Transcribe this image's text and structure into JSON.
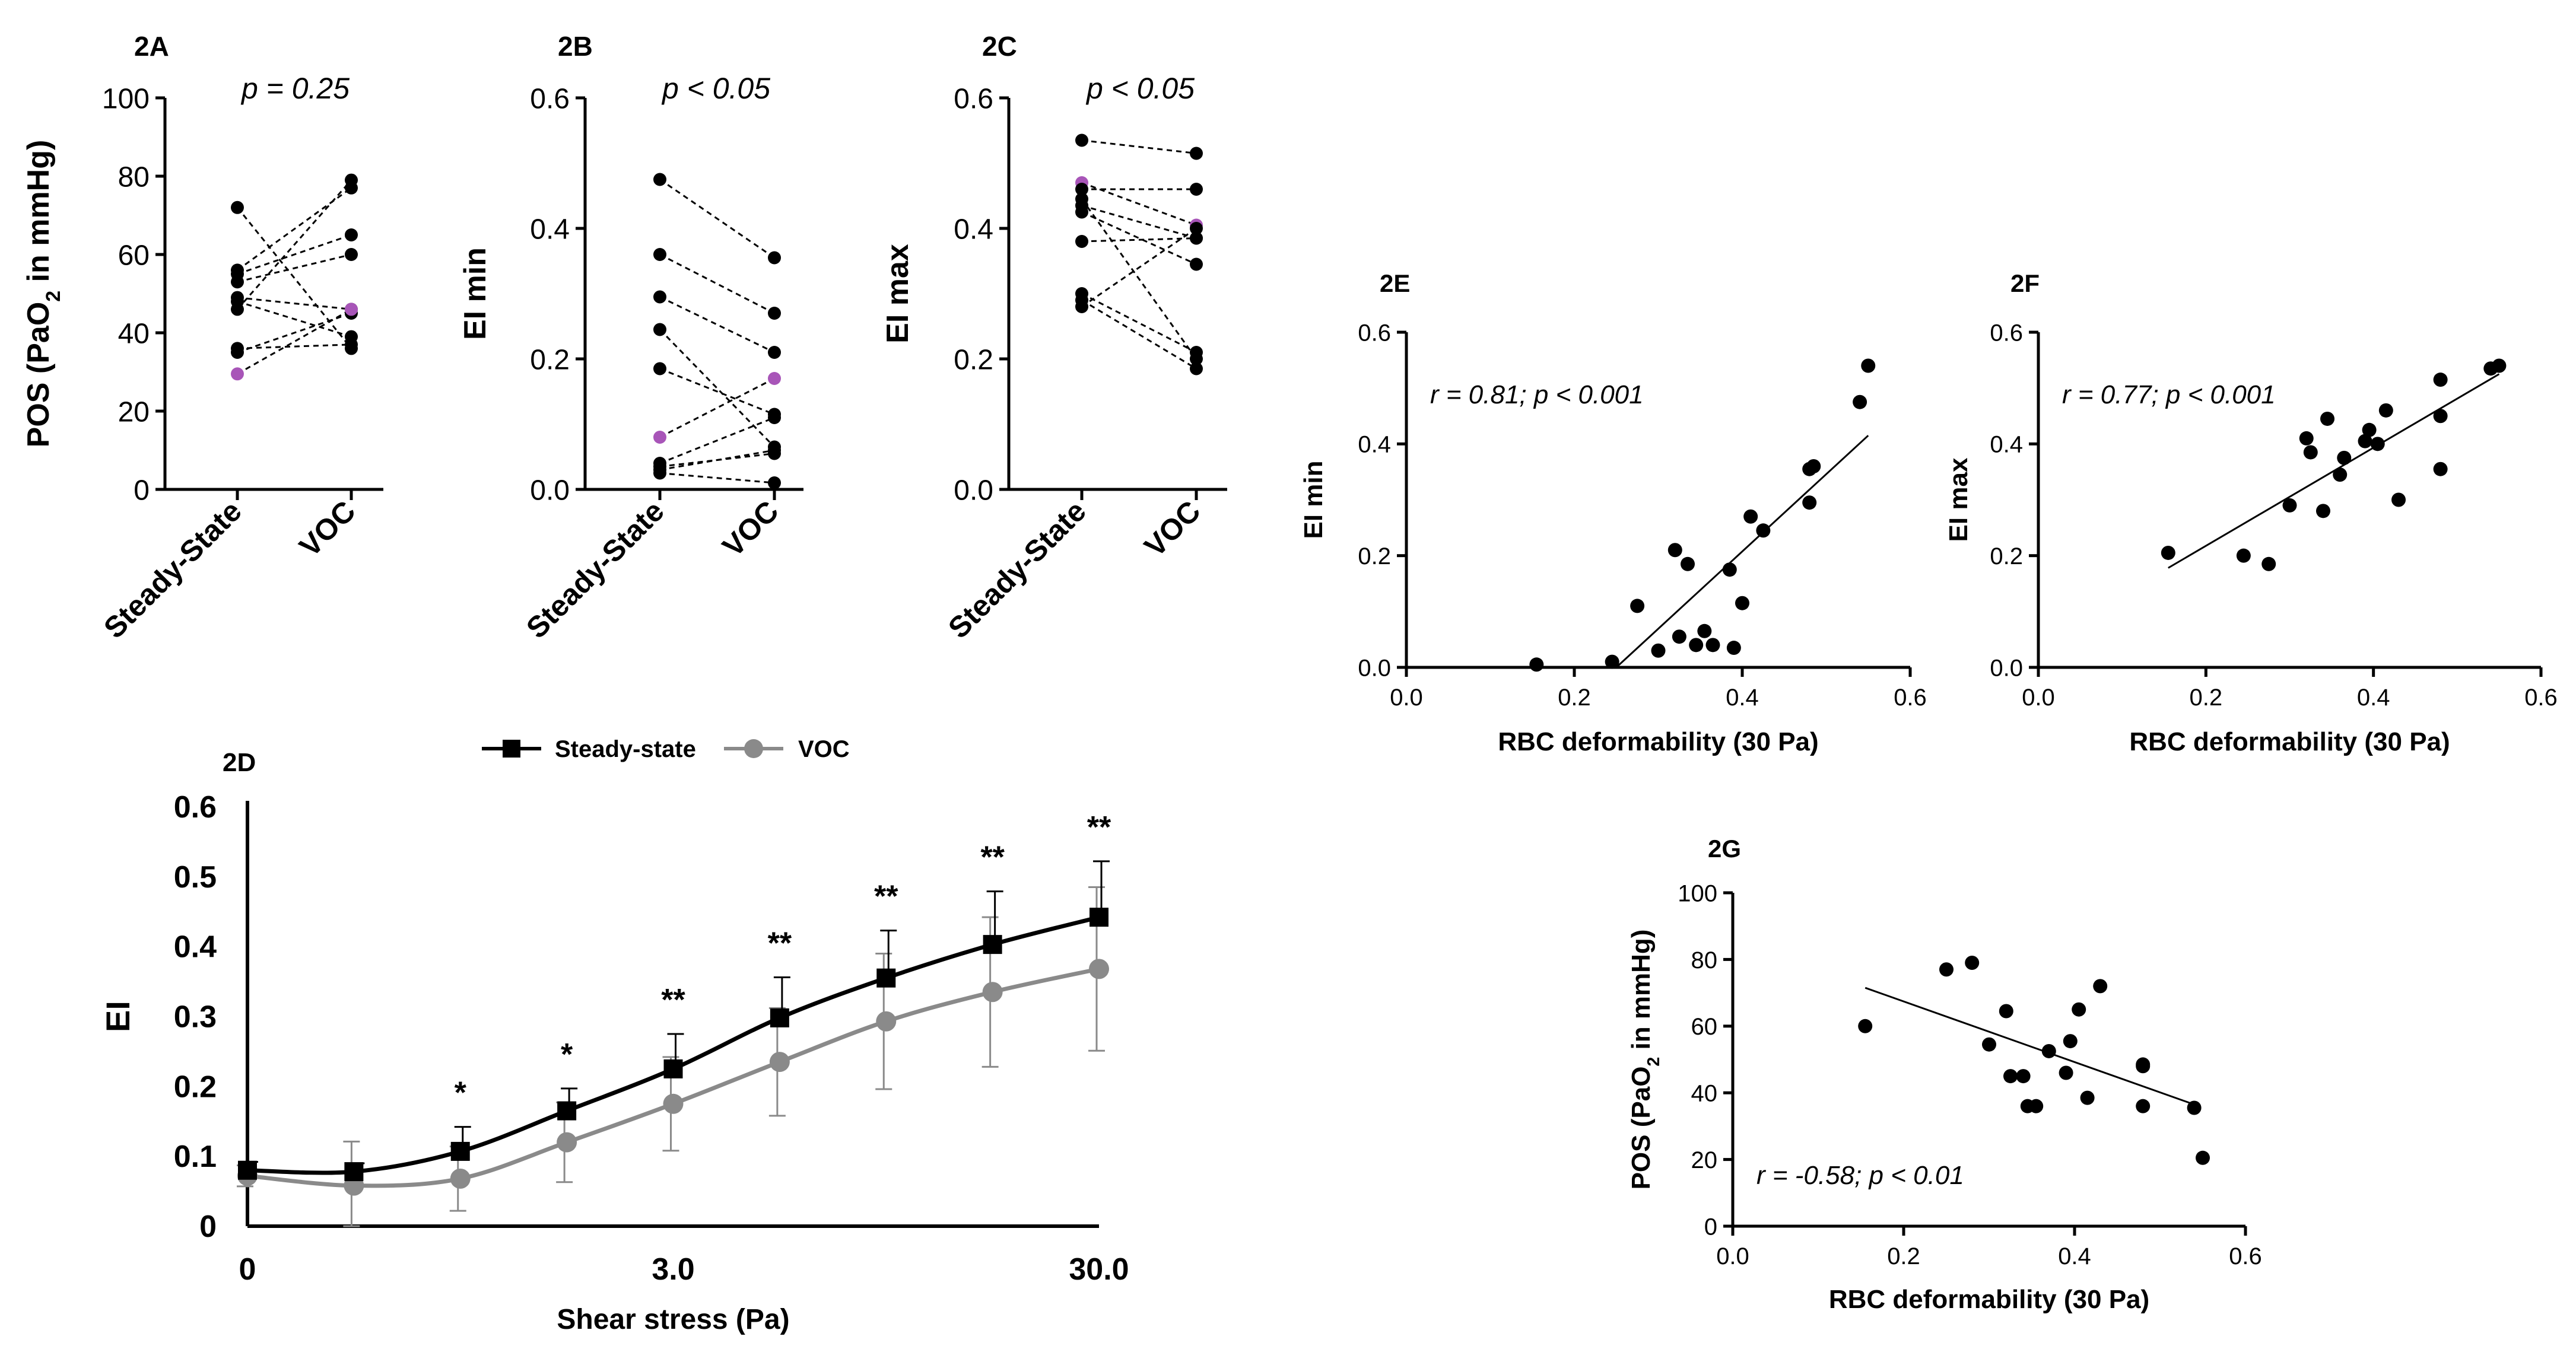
{
  "chart_data": [
    {
      "id": "2A",
      "type": "scatter",
      "style": "paired",
      "panel_label": "2A",
      "annotation": "p = 0.25",
      "ylabel_parts": [
        "POS (PaO",
        "2",
        " in mmHg)"
      ],
      "categories": [
        "Steady-State",
        "VOC"
      ],
      "ylim": [
        0,
        100
      ],
      "yticks": [
        0,
        20,
        40,
        60,
        80,
        100
      ],
      "ytick_labels": [
        "0",
        "20",
        "40",
        "60",
        "80",
        "100"
      ],
      "pairs": [
        [
          72,
          36
        ],
        [
          56,
          77
        ],
        [
          55,
          65
        ],
        [
          53,
          60
        ],
        [
          49,
          46
        ],
        [
          48,
          39
        ],
        [
          46,
          79
        ],
        [
          36,
          37
        ],
        [
          35,
          45
        ],
        [
          29.5,
          46
        ]
      ],
      "highlight_index": 9,
      "point_color": "#000000",
      "highlight_color": "#a855b8"
    },
    {
      "id": "2B",
      "type": "scatter",
      "style": "paired",
      "panel_label": "2B",
      "annotation": "p < 0.05",
      "ylabel": "EI min",
      "categories": [
        "Steady-State",
        "VOC"
      ],
      "ylim": [
        0,
        0.6
      ],
      "yticks": [
        0,
        0.2,
        0.4,
        0.6
      ],
      "ytick_labels": [
        "0.0",
        "0.2",
        "0.4",
        "0.6"
      ],
      "pairs": [
        [
          0.475,
          0.355
        ],
        [
          0.36,
          0.27
        ],
        [
          0.295,
          0.21
        ],
        [
          0.245,
          0.065
        ],
        [
          0.185,
          0.115
        ],
        [
          0.08,
          0.17
        ],
        [
          0.04,
          0.11
        ],
        [
          0.035,
          0.055
        ],
        [
          0.03,
          0.06
        ],
        [
          0.025,
          0.01
        ]
      ],
      "highlight_index": 5,
      "point_color": "#000000",
      "highlight_color": "#a855b8"
    },
    {
      "id": "2C",
      "type": "scatter",
      "style": "paired",
      "panel_label": "2C",
      "annotation": "p < 0.05",
      "ylabel": "EI max",
      "categories": [
        "Steady-State",
        "VOC"
      ],
      "ylim": [
        0,
        0.6
      ],
      "yticks": [
        0,
        0.2,
        0.4,
        0.6
      ],
      "ytick_labels": [
        "0.0",
        "0.2",
        "0.4",
        "0.6"
      ],
      "pairs": [
        [
          0.535,
          0.515
        ],
        [
          0.47,
          0.405
        ],
        [
          0.46,
          0.46
        ],
        [
          0.445,
          0.2
        ],
        [
          0.435,
          0.385
        ],
        [
          0.425,
          0.345
        ],
        [
          0.38,
          0.385
        ],
        [
          0.3,
          0.21
        ],
        [
          0.29,
          0.185
        ],
        [
          0.28,
          0.4
        ]
      ],
      "highlight_index": 1,
      "point_color": "#000000",
      "highlight_color": "#a855b8"
    },
    {
      "id": "2D",
      "type": "line",
      "panel_label": "2D",
      "xlabel": "Shear stress (Pa)",
      "ylabel": "EI",
      "x_tick_labels": [
        {
          "label": "0",
          "index": 0
        },
        {
          "label": "3.0",
          "index": 4
        },
        {
          "label": "30.0",
          "index": 8
        }
      ],
      "x_count": 9,
      "ylim": [
        0,
        0.6
      ],
      "yticks": [
        0,
        0.1,
        0.2,
        0.3,
        0.4,
        0.5,
        0.6
      ],
      "ytick_labels": [
        "0",
        "0.1",
        "0.2",
        "0.3",
        "0.4",
        "0.5",
        "0.6"
      ],
      "series": [
        {
          "name": "Steady-state",
          "marker": "square",
          "color": "#000000",
          "values": [
            0.08,
            0.078,
            0.107,
            0.165,
            0.225,
            0.298,
            0.355,
            0.403,
            0.442
          ],
          "errors": [
            0.012,
            0.012,
            0.035,
            0.032,
            0.05,
            0.058,
            0.068,
            0.076,
            0.08
          ]
        },
        {
          "name": "VOC",
          "marker": "circle",
          "color": "#8a8a8a",
          "values": [
            0.072,
            0.058,
            0.068,
            0.12,
            0.175,
            0.235,
            0.293,
            0.335,
            0.368
          ],
          "errors": [
            0.015,
            0.063,
            0.046,
            0.057,
            0.067,
            0.077,
            0.097,
            0.107,
            0.117
          ]
        }
      ],
      "significance": [
        "",
        "",
        "*",
        "*",
        "**",
        "**",
        "**",
        "**",
        "**"
      ],
      "legend": "top-center"
    },
    {
      "id": "2E",
      "type": "scatter",
      "panel_label": "2E",
      "annotation": "r = 0.81; p < 0.001",
      "xlabel": "RBC deformability (30 Pa)",
      "ylabel": "EI min",
      "xlim": [
        0,
        0.6
      ],
      "xticks": [
        0,
        0.2,
        0.4,
        0.6
      ],
      "xtick_labels": [
        "0.0",
        "0.2",
        "0.4",
        "0.6"
      ],
      "ylim": [
        0,
        0.6
      ],
      "yticks": [
        0,
        0.2,
        0.4,
        0.6
      ],
      "ytick_labels": [
        "0.0",
        "0.2",
        "0.4",
        "0.6"
      ],
      "points": [
        [
          0.155,
          0.005
        ],
        [
          0.245,
          0.01
        ],
        [
          0.275,
          0.11
        ],
        [
          0.3,
          0.03
        ],
        [
          0.32,
          0.21
        ],
        [
          0.325,
          0.055
        ],
        [
          0.335,
          0.185
        ],
        [
          0.345,
          0.04
        ],
        [
          0.355,
          0.065
        ],
        [
          0.365,
          0.04
        ],
        [
          0.385,
          0.175
        ],
        [
          0.39,
          0.035
        ],
        [
          0.4,
          0.115
        ],
        [
          0.41,
          0.27
        ],
        [
          0.425,
          0.245
        ],
        [
          0.48,
          0.295
        ],
        [
          0.48,
          0.355
        ],
        [
          0.485,
          0.36
        ],
        [
          0.54,
          0.475
        ],
        [
          0.55,
          0.54
        ]
      ],
      "fit_line": [
        [
          0.25,
          0.0
        ],
        [
          0.55,
          0.415
        ]
      ]
    },
    {
      "id": "2F",
      "type": "scatter",
      "panel_label": "2F",
      "annotation": "r = 0.77; p < 0.001",
      "xlabel": "RBC deformability (30 Pa)",
      "ylabel": "EI max",
      "xlim": [
        0,
        0.6
      ],
      "xticks": [
        0,
        0.2,
        0.4,
        0.6
      ],
      "xtick_labels": [
        "0.0",
        "0.2",
        "0.4",
        "0.6"
      ],
      "ylim": [
        0,
        0.6
      ],
      "yticks": [
        0,
        0.2,
        0.4,
        0.6
      ],
      "ytick_labels": [
        "0.0",
        "0.2",
        "0.4",
        "0.6"
      ],
      "points": [
        [
          0.155,
          0.205
        ],
        [
          0.245,
          0.2
        ],
        [
          0.275,
          0.185
        ],
        [
          0.3,
          0.29
        ],
        [
          0.32,
          0.41
        ],
        [
          0.325,
          0.385
        ],
        [
          0.34,
          0.28
        ],
        [
          0.345,
          0.445
        ],
        [
          0.36,
          0.345
        ],
        [
          0.365,
          0.375
        ],
        [
          0.39,
          0.405
        ],
        [
          0.395,
          0.425
        ],
        [
          0.405,
          0.4
        ],
        [
          0.415,
          0.46
        ],
        [
          0.43,
          0.3
        ],
        [
          0.48,
          0.515
        ],
        [
          0.48,
          0.45
        ],
        [
          0.48,
          0.355
        ],
        [
          0.54,
          0.535
        ],
        [
          0.55,
          0.54
        ]
      ],
      "fit_line": [
        [
          0.155,
          0.178
        ],
        [
          0.55,
          0.525
        ]
      ]
    },
    {
      "id": "2G",
      "type": "scatter",
      "panel_label": "2G",
      "annotation": "r = -0.58; p < 0.01",
      "xlabel": "RBC deformability (30 Pa)",
      "ylabel_parts": [
        "POS (PaO",
        "2",
        " in mmHg)"
      ],
      "xlim": [
        0,
        0.6
      ],
      "xticks": [
        0,
        0.2,
        0.4,
        0.6
      ],
      "xtick_labels": [
        "0.0",
        "0.2",
        "0.4",
        "0.6"
      ],
      "ylim": [
        0,
        100
      ],
      "yticks": [
        0,
        20,
        40,
        60,
        80,
        100
      ],
      "ytick_labels": [
        "0",
        "20",
        "40",
        "60",
        "80",
        "100"
      ],
      "points": [
        [
          0.155,
          60
        ],
        [
          0.25,
          77
        ],
        [
          0.28,
          79
        ],
        [
          0.3,
          54.5
        ],
        [
          0.32,
          64.5
        ],
        [
          0.325,
          45
        ],
        [
          0.34,
          45
        ],
        [
          0.345,
          36
        ],
        [
          0.355,
          36
        ],
        [
          0.37,
          52.5
        ],
        [
          0.39,
          46
        ],
        [
          0.395,
          55.5
        ],
        [
          0.405,
          65
        ],
        [
          0.415,
          38.5
        ],
        [
          0.43,
          72
        ],
        [
          0.48,
          48
        ],
        [
          0.48,
          48.5
        ],
        [
          0.48,
          36
        ],
        [
          0.54,
          35.5
        ],
        [
          0.55,
          20.5
        ]
      ],
      "fit_line": [
        [
          0.155,
          71.5
        ],
        [
          0.54,
          36.5
        ]
      ]
    }
  ]
}
